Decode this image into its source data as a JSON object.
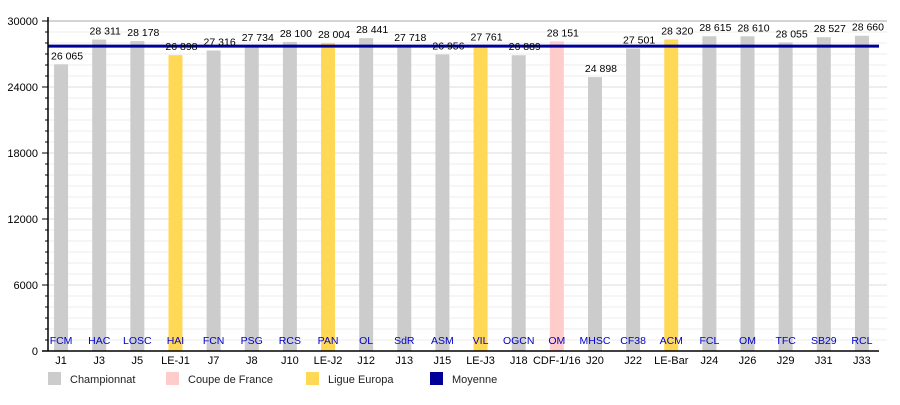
{
  "chart_data": {
    "type": "bar",
    "title": "",
    "xlabel": "",
    "ylabel": "",
    "ylim": [
      0,
      30000
    ],
    "yticks": [
      "0",
      "6000",
      "12000",
      "18000",
      "24000",
      "30000"
    ],
    "grid": true,
    "categories": [
      "J1",
      "J3",
      "J5",
      "LE-J1",
      "J7",
      "J8",
      "J10",
      "LE-J2",
      "J12",
      "J13",
      "J15",
      "LE-J3",
      "J18",
      "CDF-1/16",
      "J20",
      "J22",
      "LE-Bar",
      "J24",
      "J26",
      "J29",
      "J31",
      "J33"
    ],
    "opponents": [
      "FCM",
      "HAC",
      "LOSC",
      "HAI",
      "FCN",
      "PSG",
      "RCS",
      "PAN",
      "OL",
      "SdR",
      "ASM",
      "VIL",
      "OGCN",
      "OM",
      "MHSC",
      "CF38",
      "ACM",
      "FCL",
      "OM",
      "TFC",
      "SB29",
      "RCL"
    ],
    "values": [
      26065,
      28311,
      28178,
      26898,
      27316,
      27734,
      28100,
      28004,
      28441,
      27718,
      26956,
      27761,
      26889,
      28151,
      24898,
      27501,
      28320,
      28615,
      28610,
      28055,
      28527,
      28660
    ],
    "value_labels": [
      "26 065",
      "28 311",
      "28 178",
      "26 898",
      "27 316",
      "27 734",
      "28 100",
      "28 004",
      "28 441",
      "27 718",
      "26 956",
      "27 761",
      "26 889",
      "28 151",
      "24 898",
      "27 501",
      "28 320",
      "28 615",
      "28 610",
      "28 055",
      "28 527",
      "28 660"
    ],
    "competition": [
      "C",
      "C",
      "C",
      "LE",
      "C",
      "C",
      "C",
      "LE",
      "C",
      "C",
      "C",
      "LE",
      "C",
      "CDF",
      "C",
      "C",
      "LE",
      "C",
      "C",
      "C",
      "C",
      "C"
    ],
    "average": 27714,
    "legend_position": "bottom",
    "legend": [
      {
        "key": "C",
        "label": "Championnat",
        "color": "#cccccc"
      },
      {
        "key": "CDF",
        "label": "Coupe de France",
        "color": "#ffcccc"
      },
      {
        "key": "LE",
        "label": "Ligue Europa",
        "color": "#ffd955"
      },
      {
        "key": "AVG",
        "label": "Moyenne",
        "color": "#000099"
      }
    ],
    "opponent_label_color": "#0000cc"
  }
}
